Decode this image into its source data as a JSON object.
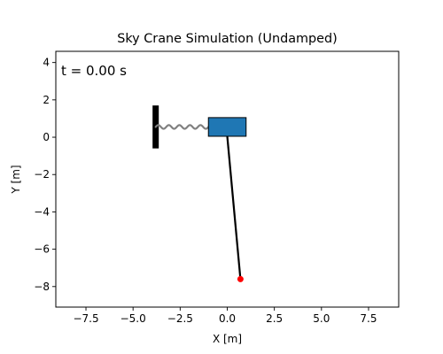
{
  "chart_data": {
    "type": "scatter",
    "title": "Sky Crane Simulation (Undamped)",
    "xlabel": "X [m]",
    "ylabel": "Y [m]",
    "xlim": [
      -9.1,
      9.1
    ],
    "ylim": [
      -9.1,
      4.6
    ],
    "xticks": [
      -7.5,
      -5.0,
      -2.5,
      0.0,
      2.5,
      5.0,
      7.5
    ],
    "xtick_labels": [
      "−7.5",
      "−5.0",
      "−2.5",
      "0.0",
      "2.5",
      "5.0",
      "7.5"
    ],
    "yticks": [
      -8,
      -6,
      -4,
      -2,
      0,
      2,
      4
    ],
    "ytick_labels": [
      "−8",
      "−6",
      "−4",
      "−2",
      "0",
      "2",
      "4"
    ],
    "grid": false,
    "annotation": "t = 0.00 s",
    "wall": {
      "x": -3.8,
      "y_bottom": -0.6,
      "y_top": 1.7
    },
    "spring": {
      "x_start": -3.8,
      "x_end": -1.0,
      "y": 0.55,
      "coils": 5,
      "amplitude": 0.1
    },
    "crane_body": {
      "x_left": -1.0,
      "x_right": 1.0,
      "y_bottom": 0.05,
      "y_top": 1.05
    },
    "cable": {
      "x1": 0.0,
      "y1": 0.05,
      "x2": 0.7,
      "y2": -7.6
    },
    "load": {
      "x": 0.7,
      "y": -7.6
    },
    "colors": {
      "wall": "#000000",
      "spring": "#808080",
      "crane_body": "#1f77b4",
      "cable": "#000000",
      "load": "#ff0000"
    }
  }
}
